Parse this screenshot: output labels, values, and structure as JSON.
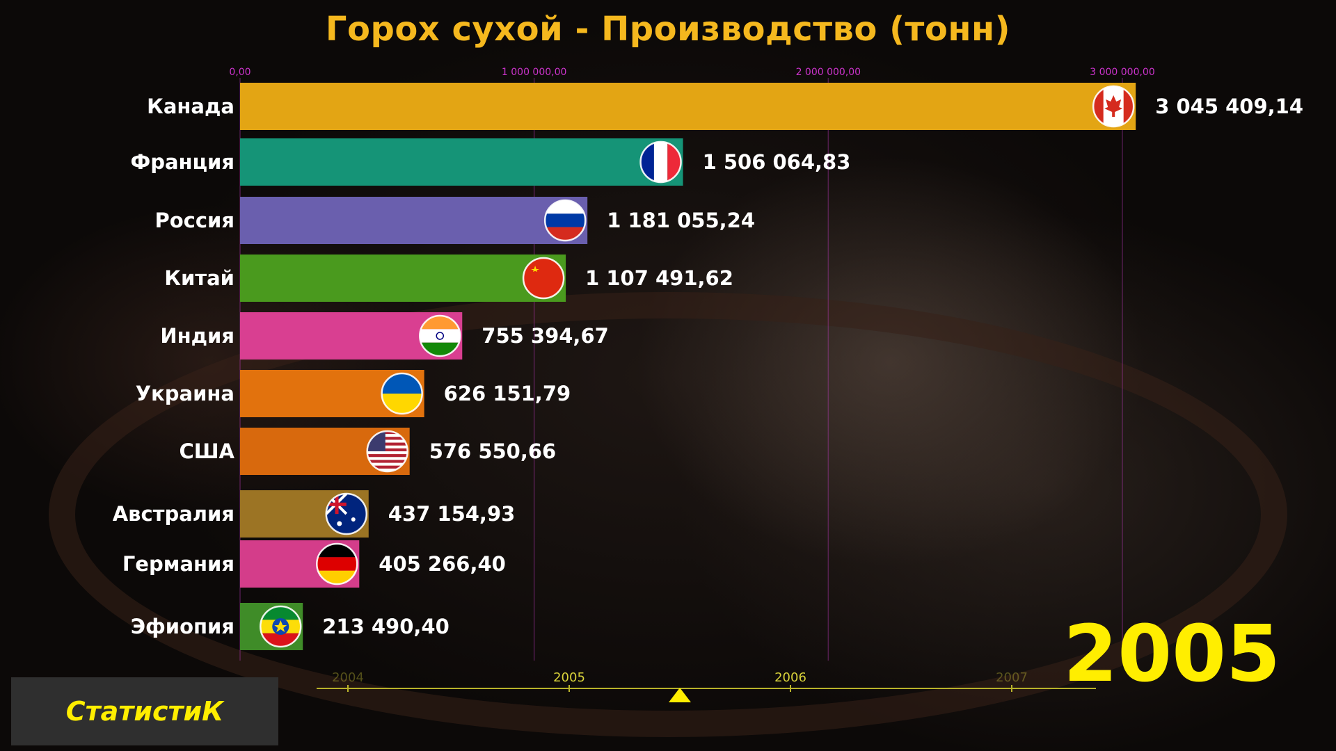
{
  "chart_data": {
    "type": "bar",
    "orientation": "horizontal",
    "title": "Горох сухой - Производство (тонн)",
    "year": "2005",
    "xlim": [
      0,
      3000000
    ],
    "xticks": [
      {
        "value": 0,
        "label": "0,00"
      },
      {
        "value": 1000000,
        "label": "1 000 000,00"
      },
      {
        "value": 2000000,
        "label": "2 000 000,00"
      },
      {
        "value": 3000000,
        "label": "3 000 000,00"
      }
    ],
    "categories": [
      "Канада",
      "Франция",
      "Россия",
      "Китай",
      "Индия",
      "Украина",
      "США",
      "Австралия",
      "Германия",
      "Эфиопия"
    ],
    "values": [
      3045409.14,
      1506064.83,
      1181055.24,
      1107491.62,
      755394.67,
      626151.79,
      576550.66,
      437154.93,
      405266.4,
      213490.4
    ],
    "value_labels": [
      "3 045 409,14",
      "1 506 064,83",
      "1 181 055,24",
      "1 107 491,62",
      "755 394,67",
      "626 151,79",
      "576 550,66",
      "437 154,93",
      "405 266,40",
      "213 490,40"
    ],
    "colors": [
      "#e3a514",
      "#159477",
      "#6a5fae",
      "#4a9a1e",
      "#d93f91",
      "#e2720d",
      "#d8690d",
      "#9c7424",
      "#d43d8a",
      "#3f8c28"
    ],
    "flags": [
      "canada-flag-icon",
      "france-flag-icon",
      "russia-flag-icon",
      "china-flag-icon",
      "india-flag-icon",
      "ukraine-flag-icon",
      "usa-flag-icon",
      "australia-flag-icon",
      "germany-flag-icon",
      "ethiopia-flag-icon"
    ],
    "timeline": {
      "ticks": [
        "2004",
        "2005",
        "2006",
        "2007"
      ],
      "current_position": 2005.5
    }
  },
  "brand": {
    "name": "СтатистиК"
  }
}
